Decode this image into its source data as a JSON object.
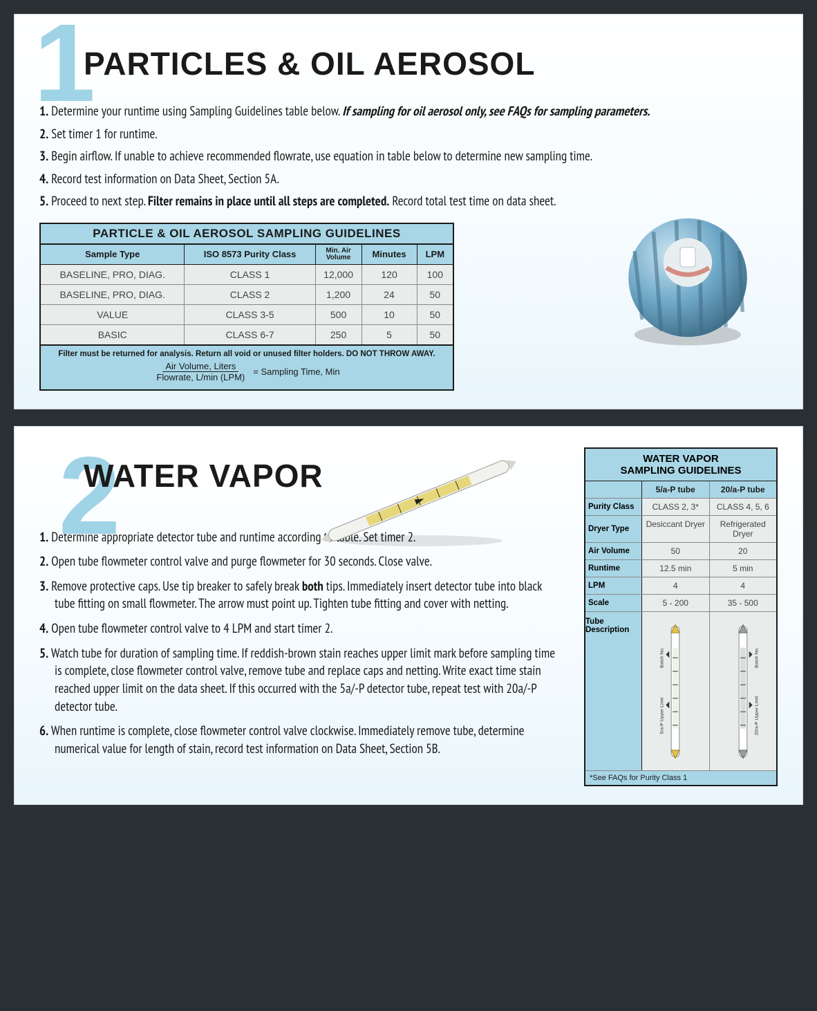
{
  "colors": {
    "page_bg": "#2a2f33",
    "card_bg_top": "#ffffff",
    "card_bg_bottom": "#e9f6fb",
    "accent_blue": "#a8d6e6",
    "number_blue": "#9fd3e6",
    "text": "#1a1a1a",
    "cell_bg": "#e8eceb",
    "cell_text": "#444444",
    "cap_blue": "#6fa8c7",
    "cap_blue_light": "#a4cde2",
    "cap_shadow": "#3f6d88"
  },
  "fonts": {
    "title_size_pt": 34,
    "body_size_pt": 14,
    "table_caption_size_pt": 13,
    "big_number_size_pt": 120
  },
  "section1": {
    "number": "1",
    "title": "PARTICLES & OIL AEROSOL",
    "steps": [
      {
        "n": "1.",
        "text": "Determine your runtime using Sampling Guidelines table below.",
        "em": "If sampling for oil aerosol only, see FAQs for sampling parameters."
      },
      {
        "n": "2.",
        "text": "Set timer 1 for runtime."
      },
      {
        "n": "3.",
        "text": "Begin airflow. If unable to achieve recommended flowrate, use equation in table below to determine new sampling time."
      },
      {
        "n": "4.",
        "text": "Record test information on Data Sheet, Section 5A."
      },
      {
        "n": "5.",
        "text": "Proceed to next step.",
        "strong": "Filter remains in place until all steps are completed.",
        "after": "Record total test time on data sheet."
      }
    ],
    "table": {
      "caption": "PARTICLE & OIL AEROSOL SAMPLING GUIDELINES",
      "columns": [
        "Sample Type",
        "ISO 8573 Purity Class",
        "Min. Air Volume",
        "Minutes",
        "LPM"
      ],
      "col_min_air_sub": "Min. Air",
      "col_min_air_sub2": "Volume",
      "rows": [
        [
          "BASELINE, PRO, DIAG.",
          "CLASS 1",
          "12,000",
          "120",
          "100"
        ],
        [
          "BASELINE, PRO, DIAG.",
          "CLASS 2",
          "1,200",
          "24",
          "50"
        ],
        [
          "VALUE",
          "CLASS 3-5",
          "500",
          "10",
          "50"
        ],
        [
          "BASIC",
          "CLASS 6-7",
          "250",
          "5",
          "50"
        ]
      ],
      "footer_warn": "Filter must be returned for analysis. Return all void or unused filter holders. DO NOT THROW AWAY.",
      "eq_top": "Air Volume, Liters",
      "eq_bot": "Flowrate, L/min (LPM)",
      "eq_rhs": "= Sampling Time, Min"
    }
  },
  "section2": {
    "number": "2",
    "title": "WATER VAPOR",
    "steps": [
      {
        "n": "1.",
        "text": "Determine appropriate detector tube and runtime according to table. Set timer 2."
      },
      {
        "n": "2.",
        "text": "Open tube flowmeter control valve and purge flowmeter for 30 seconds. Close valve."
      },
      {
        "n": "3.",
        "pre": "Remove protective caps. Use tip breaker to safely break ",
        "strong": "both",
        "post": " tips. Immediately insert detector tube into black tube fitting on small flowmeter. The arrow must point up. Tighten tube fitting and cover with netting."
      },
      {
        "n": "4.",
        "text": "Open tube flowmeter control valve to 4 LPM and start timer 2."
      },
      {
        "n": "5.",
        "text": "Watch tube for duration of sampling time. If reddish-brown stain reaches upper limit mark before sampling time is complete, close flowmeter control valve, remove tube and replace caps and netting. Write exact time stain reached upper limit on the data sheet. If this occurred with the 5a/-P detector tube, repeat test with 20a/-P detector tube."
      },
      {
        "n": "6.",
        "text": "When runtime is complete, close flowmeter control valve clockwise. Immediately remove tube, determine numerical value for length of stain, record test information on Data Sheet, Section 5B."
      }
    ],
    "table": {
      "caption_line1": "WATER VAPOR",
      "caption_line2": "SAMPLING GUIDELINES",
      "col_headers": [
        "5/a-P tube",
        "20/a-P tube"
      ],
      "rows": [
        {
          "label": "Purity Class",
          "a": "CLASS 2, 3*",
          "b": "CLASS 4, 5, 6"
        },
        {
          "label": "Dryer Type",
          "a": "Desiccant Dryer",
          "b": "Refrigerated Dryer"
        },
        {
          "label": "Air Volume",
          "a": "50",
          "b": "20"
        },
        {
          "label": "Runtime",
          "a": "12.5 min",
          "b": "5 min"
        },
        {
          "label": "LPM",
          "a": "4",
          "b": "4"
        },
        {
          "label": "Scale",
          "a": "5 - 200",
          "b": "35 - 500"
        }
      ],
      "tube_desc_label": "Tube Description",
      "tube_a_labels": {
        "batch": "Batch No.",
        "upper": "5/a-P Upper Limit"
      },
      "tube_b_labels": {
        "batch": "Batch No.",
        "upper": "20/a-P Upper Limit"
      },
      "footnote": "*See FAQs for Purity Class 1"
    }
  }
}
